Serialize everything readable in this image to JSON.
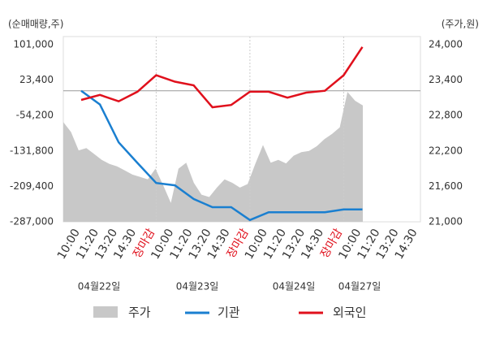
{
  "chart_data": {
    "type": "line",
    "ylabel": "(순매매량,주)",
    "y2label": "(주가,원)",
    "categories": [
      "10:00",
      "11:20",
      "13:20",
      "14:30",
      "장마감",
      "10:00",
      "11:20",
      "13:20",
      "14:30",
      "장마감",
      "10:00",
      "11:20",
      "13:20",
      "14:30",
      "장마감",
      "10:00",
      "11:20",
      "13:20",
      "14:30"
    ],
    "date_labels": [
      "04월22일",
      "04월23일",
      "04월24일",
      "04월27일"
    ],
    "ylim": [
      -287000,
      101000
    ],
    "yticks": [
      {
        "value": 101000,
        "label": "101,000"
      },
      {
        "value": 23400,
        "label": "23,400"
      },
      {
        "value": -54200,
        "label": "-54,200"
      },
      {
        "value": -131800,
        "label": "-131,800"
      },
      {
        "value": -209400,
        "label": "-209,400"
      },
      {
        "value": -287000,
        "label": "-287,000"
      }
    ],
    "y2lim": [
      21000,
      24000
    ],
    "y2ticks": [
      {
        "value": 24000,
        "label": "24,000"
      },
      {
        "value": 23400,
        "label": "23,400"
      },
      {
        "value": 22800,
        "label": "22,800"
      },
      {
        "value": 22200,
        "label": "22,200"
      },
      {
        "value": 21600,
        "label": "21,600"
      },
      {
        "value": 21000,
        "label": "21,000"
      }
    ],
    "price": {
      "name": "주가",
      "color": "#c8c8c8",
      "axis": "y2",
      "values": [
        22690,
        22520,
        22210,
        22250,
        22150,
        22050,
        21980,
        21940,
        21870,
        21800,
        21760,
        21720,
        21900,
        21620,
        21320,
        21900,
        22000,
        21660,
        21460,
        21420,
        21580,
        21720,
        21660,
        21580,
        21640,
        21980,
        22300,
        22000,
        22050,
        21990,
        22120,
        22180,
        22200,
        22280,
        22400,
        22490,
        22600,
        23200,
        23050,
        22970
      ]
    },
    "series": [
      {
        "name": "기관",
        "color": "#1a7fd0",
        "values": [
          0,
          -30000,
          -113000,
          -158000,
          -202000,
          -207000,
          -237000,
          -255000,
          -255000,
          -283000,
          -266000,
          -266000,
          -266000,
          -266000,
          -260000,
          -260000,
          null,
          null,
          null
        ]
      },
      {
        "name": "외국인",
        "color": "#e0101c",
        "values": [
          -20000,
          -9000,
          -23000,
          -2000,
          34000,
          20000,
          12000,
          -36000,
          -31000,
          -2000,
          -2000,
          -15000,
          -4000,
          0,
          34000,
          96000,
          null,
          null,
          null
        ]
      }
    ]
  }
}
